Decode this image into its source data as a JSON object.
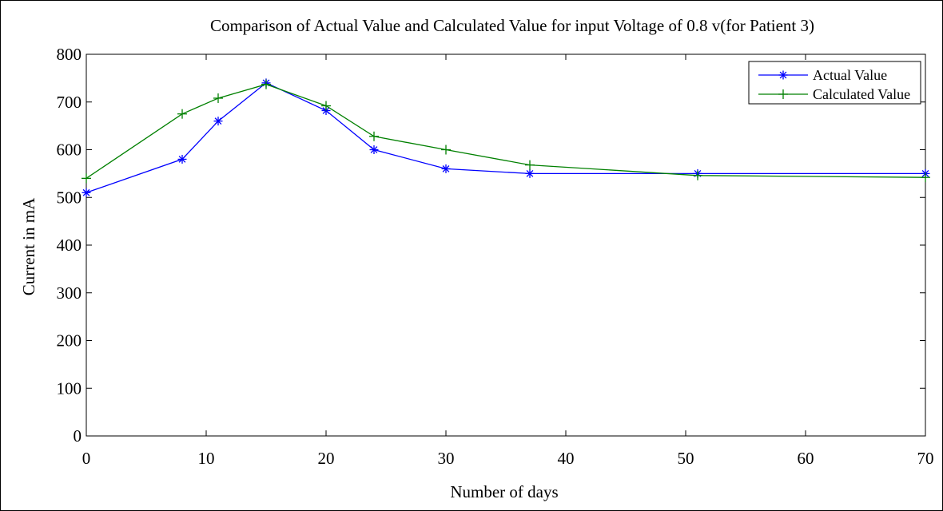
{
  "chart_data": {
    "type": "line",
    "title": "Comparison of Actual Value and Calculated Value for input Voltage of 0.8 v(for Patient 3)",
    "xlabel": "Number of days",
    "ylabel": "Current in mA",
    "xlim": [
      0,
      70
    ],
    "ylim": [
      0,
      800
    ],
    "xticks": [
      "0",
      "10",
      "20",
      "30",
      "40",
      "50",
      "60",
      "70"
    ],
    "xtick_values": [
      0,
      10,
      20,
      30,
      40,
      50,
      60,
      70
    ],
    "yticks": [
      "0",
      "100",
      "200",
      "300",
      "400",
      "500",
      "600",
      "700",
      "800"
    ],
    "ytick_values": [
      0,
      100,
      200,
      300,
      400,
      500,
      600,
      700,
      800
    ],
    "grid": false,
    "legend": "top-right",
    "series": [
      {
        "name": "Actual Value",
        "color": "#0000ff",
        "marker": "*",
        "x": [
          0,
          8,
          11,
          15,
          20,
          24,
          30,
          37,
          51,
          70
        ],
        "y": [
          510,
          580,
          660,
          740,
          682,
          600,
          560,
          550,
          550,
          550
        ]
      },
      {
        "name": "Calculated Value",
        "color": "#008000",
        "marker": "+",
        "x": [
          0,
          8,
          11,
          15,
          20,
          24,
          30,
          37,
          51,
          70
        ],
        "y": [
          540,
          675,
          708,
          737,
          692,
          628,
          600,
          568,
          546,
          542
        ]
      }
    ]
  }
}
